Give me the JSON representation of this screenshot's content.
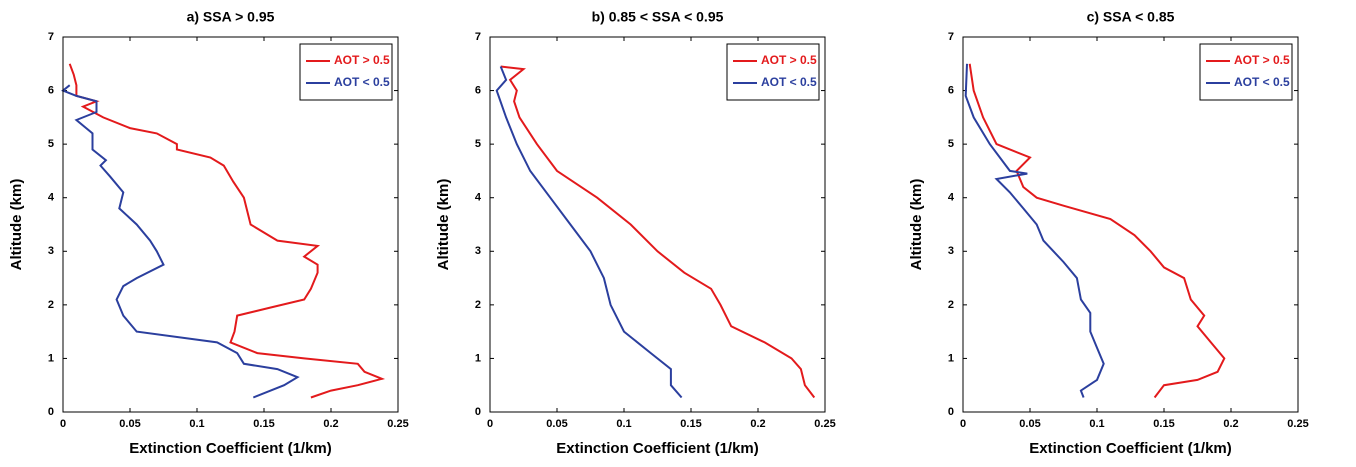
{
  "chart_data": [
    {
      "type": "line",
      "title": "a) SSA > 0.95",
      "xlabel": "Extinction Coefficient (1/km)",
      "ylabel": "Altitude (km)",
      "xlim": [
        0,
        0.25
      ],
      "ylim": [
        0,
        7
      ],
      "xticks": [
        0,
        0.05,
        0.1,
        0.15,
        0.2,
        0.25
      ],
      "yticks": [
        0,
        1,
        2,
        3,
        4,
        5,
        6,
        7
      ],
      "legend": "upper right",
      "series": [
        {
          "name": "AOT > 0.5",
          "color": "#e31a1c",
          "x": [
            0.185,
            0.2,
            0.22,
            0.238,
            0.225,
            0.22,
            0.18,
            0.145,
            0.125,
            0.128,
            0.13,
            0.155,
            0.18,
            0.185,
            0.19,
            0.19,
            0.18,
            0.19,
            0.16,
            0.14,
            0.135,
            0.127,
            0.12,
            0.11,
            0.085,
            0.085,
            0.07,
            0.05,
            0.03,
            0.015,
            0.025,
            0.01,
            0.01,
            0.008,
            0.005
          ],
          "values": [
            0.27,
            0.4,
            0.5,
            0.62,
            0.75,
            0.9,
            1.0,
            1.1,
            1.3,
            1.5,
            1.8,
            1.95,
            2.1,
            2.3,
            2.6,
            2.75,
            2.9,
            3.1,
            3.2,
            3.5,
            4.0,
            4.3,
            4.6,
            4.75,
            4.9,
            5.0,
            5.2,
            5.3,
            5.5,
            5.7,
            5.8,
            5.9,
            6.1,
            6.3,
            6.5
          ]
        },
        {
          "name": "AOT < 0.5",
          "color": "#2b3f9e",
          "x": [
            0.142,
            0.165,
            0.175,
            0.16,
            0.135,
            0.13,
            0.115,
            0.055,
            0.045,
            0.04,
            0.045,
            0.055,
            0.075,
            0.07,
            0.065,
            0.055,
            0.042,
            0.045,
            0.035,
            0.028,
            0.032,
            0.022,
            0.022,
            0.01,
            0.025,
            0.025,
            0.01,
            0.0,
            0.005
          ],
          "values": [
            0.27,
            0.5,
            0.65,
            0.8,
            0.9,
            1.1,
            1.3,
            1.5,
            1.8,
            2.1,
            2.35,
            2.5,
            2.75,
            3.0,
            3.2,
            3.5,
            3.8,
            4.1,
            4.4,
            4.6,
            4.7,
            4.9,
            5.2,
            5.45,
            5.6,
            5.8,
            5.9,
            6.0,
            6.1
          ]
        }
      ]
    },
    {
      "type": "line",
      "title": "b) 0.85 < SSA < 0.95",
      "xlabel": "Extinction Coefficient (1/km)",
      "ylabel": "Altitude (km)",
      "xlim": [
        0,
        0.25
      ],
      "ylim": [
        0,
        7
      ],
      "xticks": [
        0,
        0.05,
        0.1,
        0.15,
        0.2,
        0.25
      ],
      "yticks": [
        0,
        1,
        2,
        3,
        4,
        5,
        6,
        7
      ],
      "legend": "upper right",
      "series": [
        {
          "name": "AOT > 0.5",
          "color": "#e31a1c",
          "x": [
            0.242,
            0.235,
            0.232,
            0.225,
            0.205,
            0.18,
            0.172,
            0.165,
            0.145,
            0.125,
            0.105,
            0.08,
            0.05,
            0.035,
            0.022,
            0.018,
            0.02,
            0.015,
            0.025,
            0.008
          ],
          "values": [
            0.27,
            0.5,
            0.8,
            1.0,
            1.3,
            1.6,
            2.0,
            2.3,
            2.6,
            3.0,
            3.5,
            4.0,
            4.5,
            5.0,
            5.5,
            5.8,
            6.0,
            6.2,
            6.4,
            6.45
          ]
        },
        {
          "name": "AOT < 0.5",
          "color": "#2b3f9e",
          "x": [
            0.143,
            0.135,
            0.135,
            0.12,
            0.1,
            0.09,
            0.085,
            0.075,
            0.06,
            0.045,
            0.03,
            0.02,
            0.012,
            0.005,
            0.012,
            0.008
          ],
          "values": [
            0.27,
            0.5,
            0.8,
            1.1,
            1.5,
            2.0,
            2.5,
            3.0,
            3.5,
            4.0,
            4.5,
            5.0,
            5.5,
            6.0,
            6.2,
            6.45
          ]
        }
      ]
    },
    {
      "type": "line",
      "title": "c) SSA < 0.85",
      "xlabel": "Extinction Coefficient (1/km)",
      "ylabel": "Altitude (km)",
      "xlim": [
        0,
        0.25
      ],
      "ylim": [
        0,
        7
      ],
      "xticks": [
        0,
        0.05,
        0.1,
        0.15,
        0.2,
        0.25
      ],
      "yticks": [
        0,
        1,
        2,
        3,
        4,
        5,
        6,
        7
      ],
      "legend": "upper right",
      "series": [
        {
          "name": "AOT > 0.5",
          "color": "#e31a1c",
          "x": [
            0.143,
            0.15,
            0.175,
            0.19,
            0.195,
            0.185,
            0.175,
            0.18,
            0.17,
            0.165,
            0.15,
            0.14,
            0.128,
            0.11,
            0.075,
            0.055,
            0.045,
            0.04,
            0.05,
            0.025,
            0.015,
            0.008,
            0.005
          ],
          "values": [
            0.27,
            0.5,
            0.6,
            0.75,
            1.0,
            1.3,
            1.6,
            1.8,
            2.1,
            2.5,
            2.7,
            3.0,
            3.3,
            3.6,
            3.85,
            4.0,
            4.2,
            4.5,
            4.75,
            5.0,
            5.5,
            6.0,
            6.5
          ]
        },
        {
          "name": "AOT < 0.5",
          "color": "#2b3f9e",
          "x": [
            0.09,
            0.088,
            0.1,
            0.105,
            0.1,
            0.095,
            0.095,
            0.088,
            0.085,
            0.075,
            0.06,
            0.055,
            0.045,
            0.035,
            0.025,
            0.048,
            0.035,
            0.02,
            0.008,
            0.002,
            0.003
          ],
          "values": [
            0.27,
            0.4,
            0.6,
            0.9,
            1.2,
            1.5,
            1.85,
            2.1,
            2.5,
            2.8,
            3.2,
            3.5,
            3.8,
            4.1,
            4.35,
            4.45,
            4.5,
            5.0,
            5.5,
            5.9,
            6.5
          ]
        }
      ]
    }
  ]
}
